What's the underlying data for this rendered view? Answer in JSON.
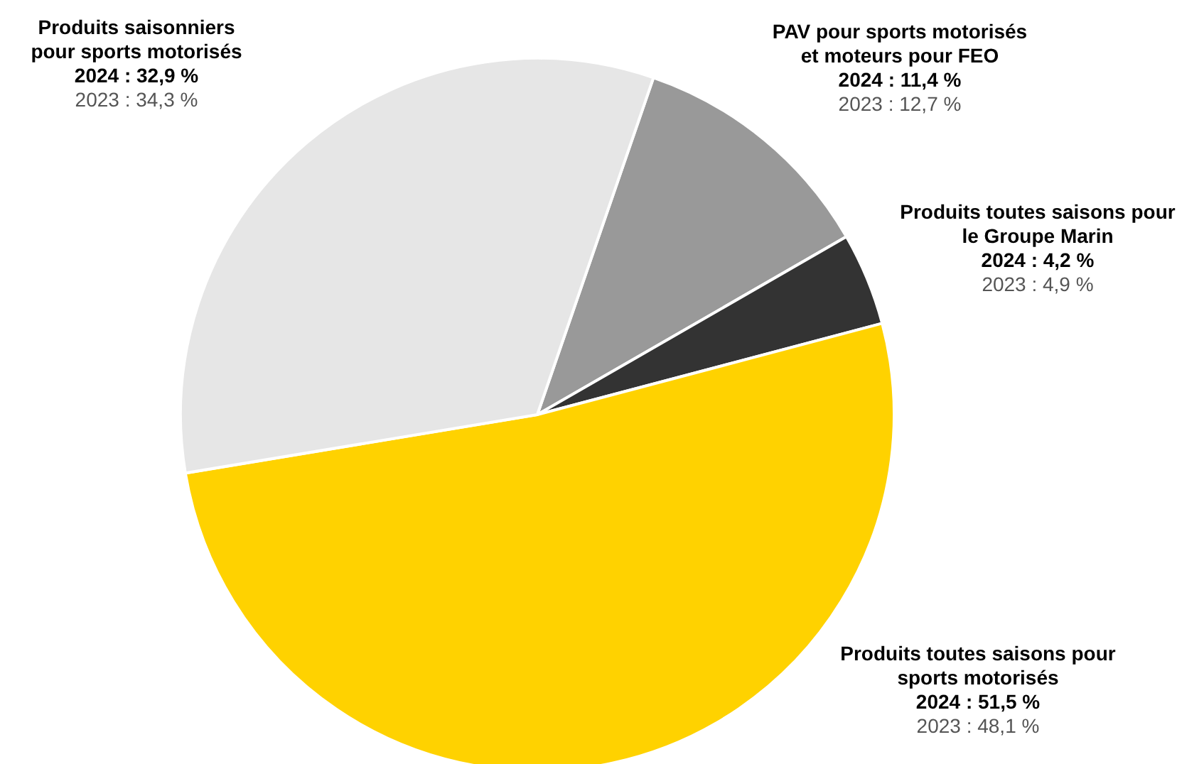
{
  "chart_data": {
    "type": "pie",
    "categories": [
      "PAV  pour sports motorisés\net moteurs pour FEO",
      "Produits toutes saisons pour\nle Groupe Marin",
      "Produits toutes saisons pour\nsports motorisés",
      "Produits saisonniers\npour sports motorisés"
    ],
    "values": [
      11.4,
      4.2,
      51.5,
      32.9
    ],
    "colors": [
      "#999999",
      "#333333",
      "#ffd200",
      "#e6e6e6"
    ],
    "value_labels": [
      "2024 : 11,4 %",
      "2024 : 4,2 %",
      "2024 : 51,5 %",
      "2024 : 32,9 %"
    ],
    "annotations": [
      "2023 : 12,7 %",
      "2023 : 4,9 %",
      "2023 : 48,1 %",
      "2023 : 34,3 %"
    ],
    "legend": false
  }
}
